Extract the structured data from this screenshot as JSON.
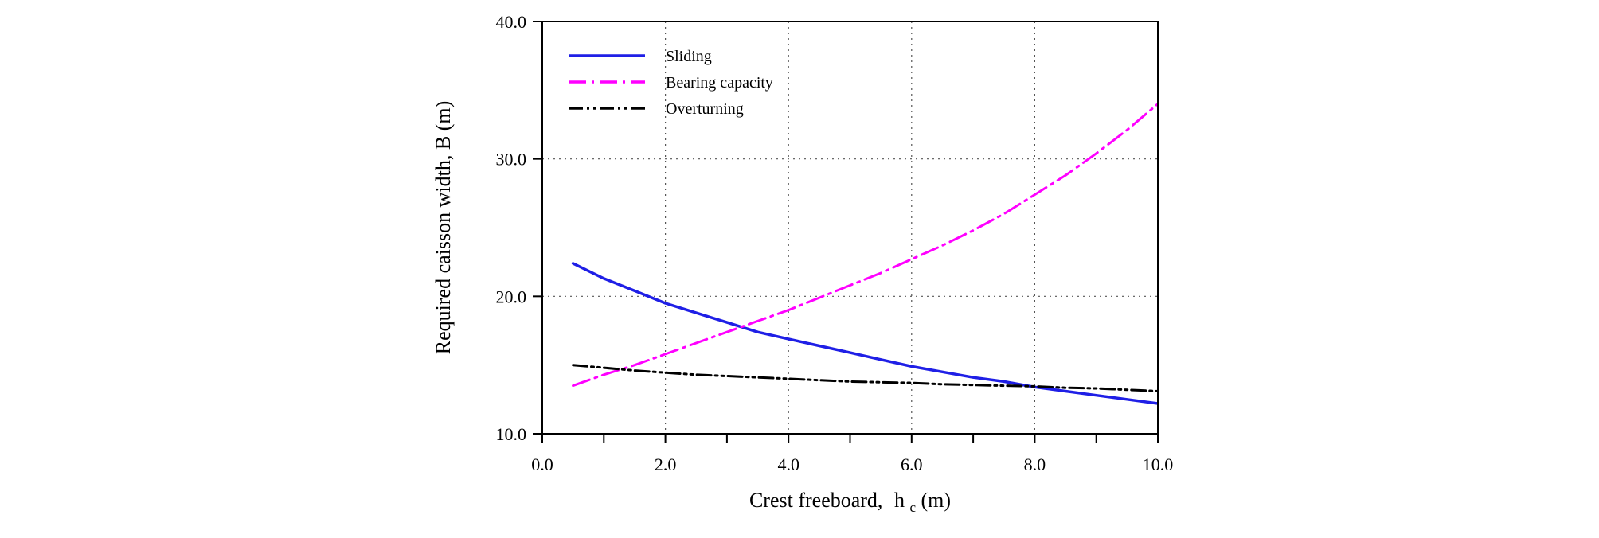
{
  "chart_data": {
    "type": "line",
    "title": "",
    "xlabel": "Crest freeboard,",
    "xlabel_symbol": "h",
    "xlabel_subscript": "c",
    "xlabel_unit": "(m)",
    "ylabel": "Required caisson width, B (m)",
    "xlim": [
      0,
      10
    ],
    "ylim": [
      10,
      40
    ],
    "x_ticks": [
      0,
      2,
      4,
      6,
      8,
      10
    ],
    "x_tick_labels": [
      "0.0",
      "2.0",
      "4.0",
      "6.0",
      "8.0",
      "10.0"
    ],
    "x_minor_ticks": [
      1,
      3,
      5,
      7,
      9
    ],
    "y_ticks": [
      10,
      20,
      30,
      40
    ],
    "y_tick_labels": [
      "10.0",
      "20.0",
      "30.0",
      "40.0"
    ],
    "grid": true,
    "grid_style": "dotted",
    "legend_position": "top-left",
    "x": [
      0.5,
      1.0,
      1.5,
      2.0,
      2.5,
      3.0,
      3.5,
      4.0,
      4.5,
      5.0,
      5.5,
      6.0,
      6.5,
      7.0,
      7.5,
      8.0,
      8.5,
      9.0,
      9.5,
      10.0
    ],
    "series": [
      {
        "name": "Sliding",
        "color": "#1f1fe6",
        "style": "solid",
        "values": [
          22.4,
          21.3,
          20.4,
          19.5,
          18.8,
          18.1,
          17.4,
          16.9,
          16.4,
          15.9,
          15.4,
          14.9,
          14.5,
          14.1,
          13.8,
          13.4,
          13.1,
          12.8,
          12.5,
          12.2
        ]
      },
      {
        "name": "Bearing capacity",
        "color": "#ff00ff",
        "style": "dash-dot",
        "values": [
          13.5,
          14.3,
          15.0,
          15.8,
          16.6,
          17.4,
          18.2,
          19.0,
          19.9,
          20.8,
          21.7,
          22.7,
          23.7,
          24.8,
          26.0,
          27.4,
          28.8,
          30.4,
          32.1,
          34.0
        ]
      },
      {
        "name": "Overturning",
        "color": "#000000",
        "style": "dash-dot-dot",
        "values": [
          15.0,
          14.8,
          14.6,
          14.45,
          14.3,
          14.2,
          14.1,
          14.0,
          13.9,
          13.8,
          13.75,
          13.7,
          13.6,
          13.55,
          13.5,
          13.45,
          13.35,
          13.3,
          13.2,
          13.1
        ]
      }
    ]
  }
}
